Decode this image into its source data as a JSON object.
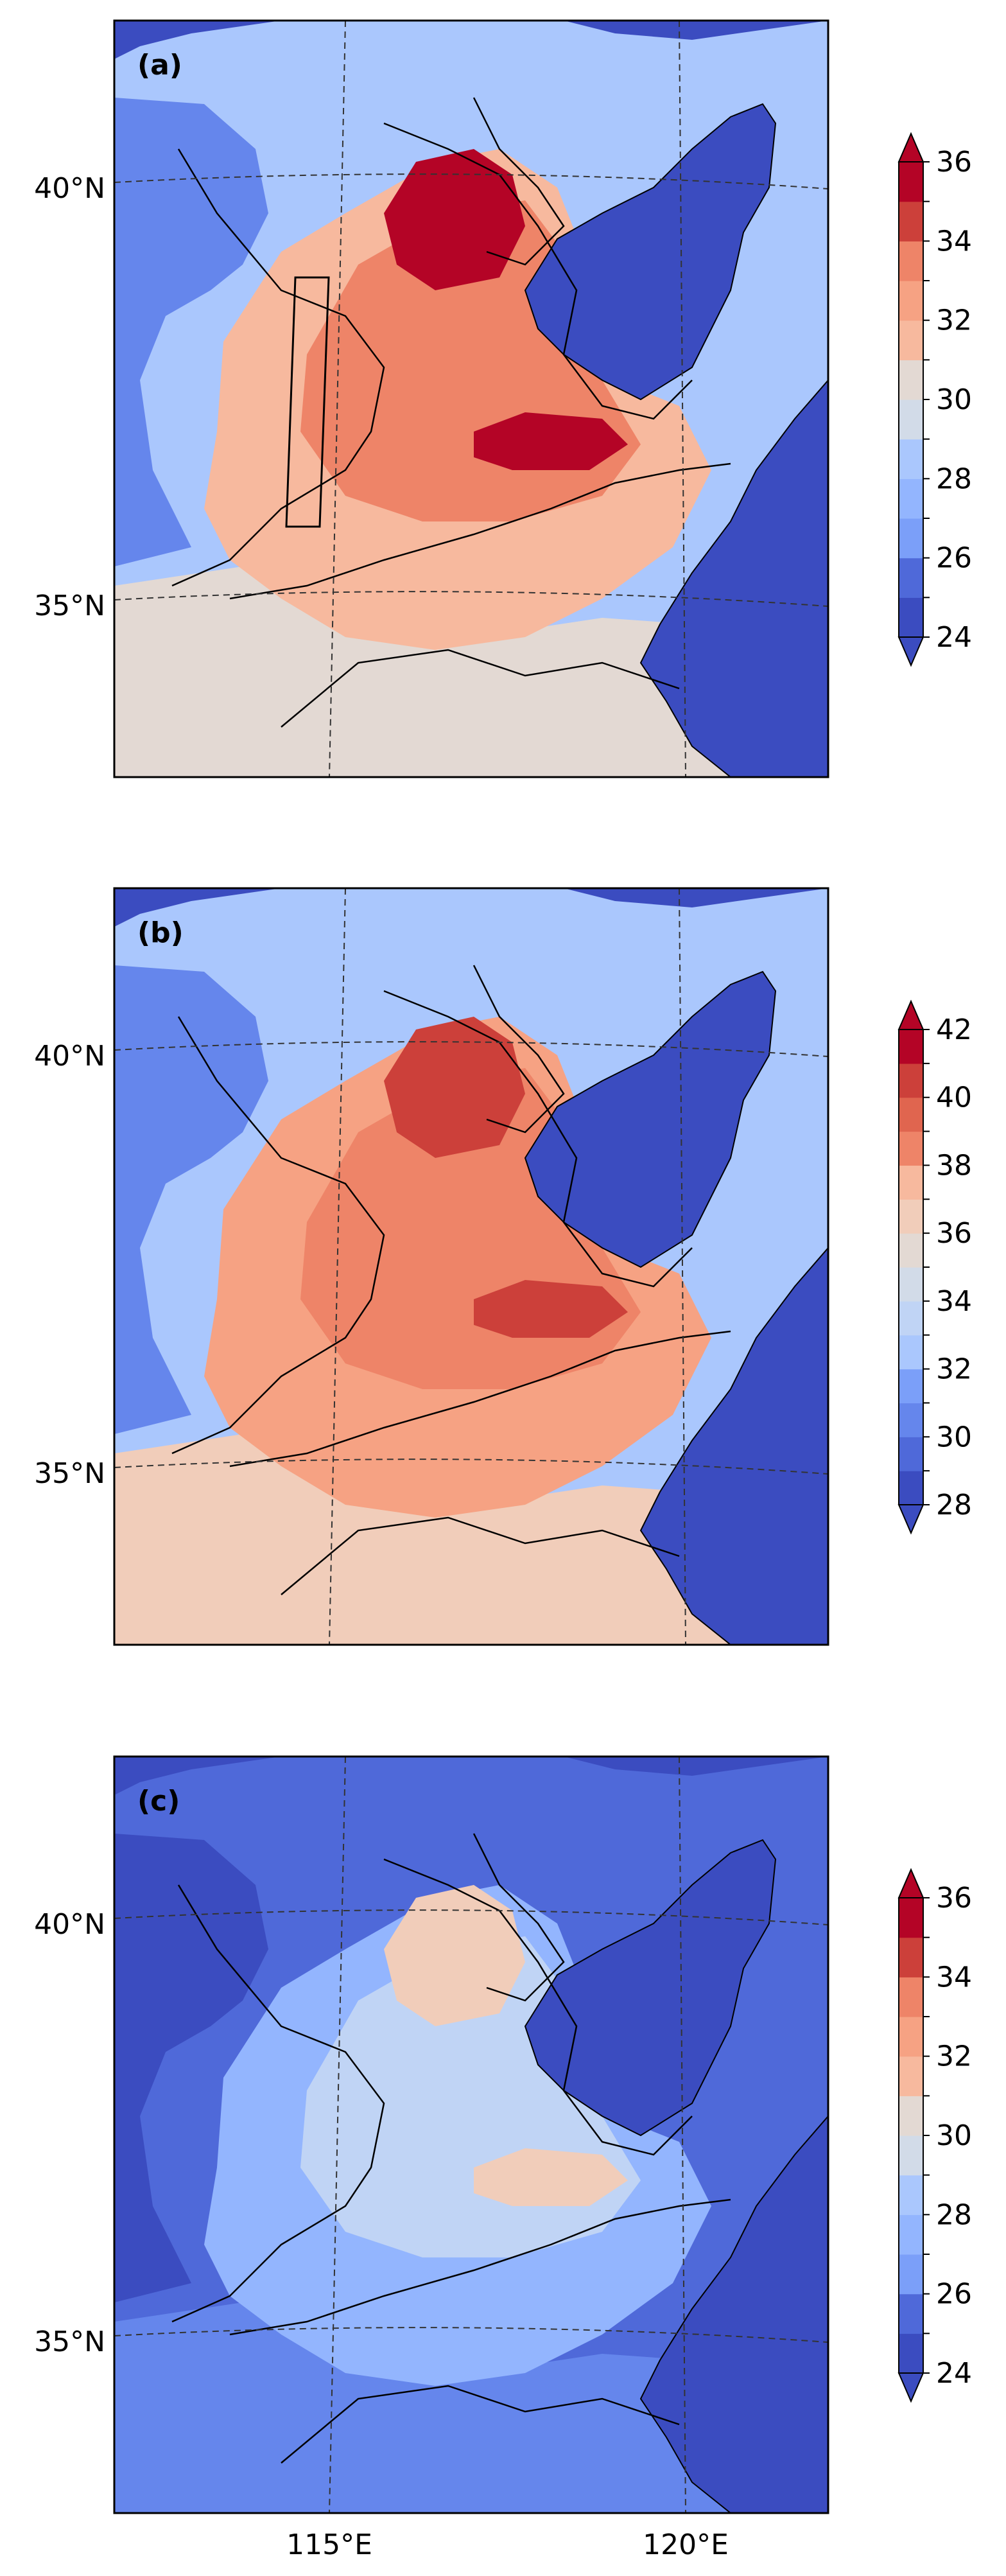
{
  "panels": [
    {
      "id": "a",
      "label": "(a)",
      "scale": "warm",
      "colorbar": {
        "min": 24,
        "max": 36,
        "step": 1,
        "tick_labels": [
          "24",
          "26",
          "28",
          "30",
          "32",
          "34",
          "36"
        ]
      },
      "study_box": true
    },
    {
      "id": "b",
      "label": "(b)",
      "scale": "hot",
      "colorbar": {
        "min": 28,
        "max": 42,
        "step": 1,
        "tick_labels": [
          "28",
          "30",
          "32",
          "34",
          "36",
          "38",
          "40",
          "42"
        ]
      },
      "study_box": false
    },
    {
      "id": "c",
      "label": "(c)",
      "scale": "cool",
      "colorbar": {
        "min": 24,
        "max": 36,
        "step": 1,
        "tick_labels": [
          "24",
          "26",
          "28",
          "30",
          "32",
          "34",
          "36"
        ]
      },
      "study_box": false
    }
  ],
  "lat_labels": [
    "40°N",
    "35°N"
  ],
  "lon_labels": [
    "115°E",
    "120°E"
  ],
  "colors": {
    "sea": "#3b4cc0",
    "cmap": [
      "#3b4cc0",
      "#4f69d9",
      "#6586ec",
      "#7b9ff9",
      "#93b5fe",
      "#aac7fd",
      "#c0d4f5",
      "#d2dbe8",
      "#e3d9d3",
      "#f1cdba",
      "#f7b99e",
      "#f6a283",
      "#ee8468",
      "#e0654f",
      "#cc403a",
      "#b40426"
    ]
  }
}
